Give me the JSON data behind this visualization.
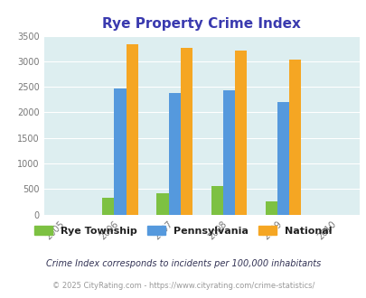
{
  "title": "Rye Property Crime Index",
  "title_color": "#3a3aaf",
  "years_axis": [
    2005,
    2006,
    2007,
    2008,
    2009,
    2010
  ],
  "data_years": [
    2006,
    2007,
    2008,
    2009
  ],
  "rye_township": [
    330,
    420,
    555,
    260
  ],
  "pennsylvania": [
    2470,
    2380,
    2440,
    2210
  ],
  "national": [
    3340,
    3270,
    3210,
    3040
  ],
  "colors": {
    "rye": "#7dc142",
    "penn": "#5599dd",
    "national": "#f5a623"
  },
  "ylim": [
    0,
    3500
  ],
  "yticks": [
    0,
    500,
    1000,
    1500,
    2000,
    2500,
    3000,
    3500
  ],
  "bg_color": "#ddeef0",
  "legend_labels": [
    "Rye Township",
    "Pennsylvania",
    "National"
  ],
  "footnote1": "Crime Index corresponds to incidents per 100,000 inhabitants",
  "footnote2": "© 2025 CityRating.com - https://www.cityrating.com/crime-statistics/",
  "bar_width": 0.22
}
